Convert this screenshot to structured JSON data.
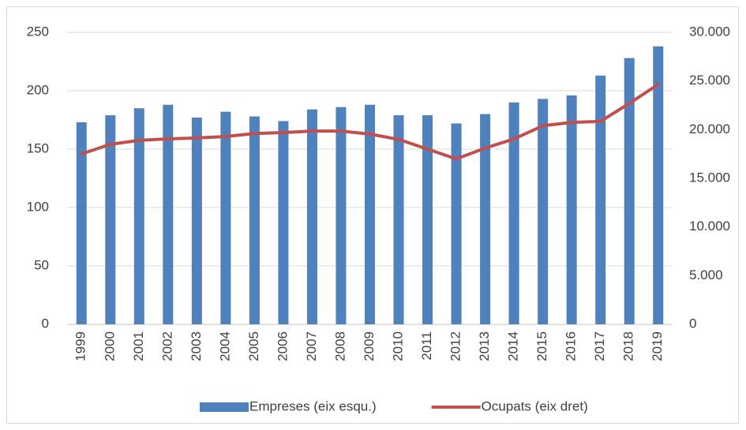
{
  "chart_data": {
    "type": "combo",
    "categories": [
      "1999",
      "2000",
      "2001",
      "2002",
      "2003",
      "2004",
      "2005",
      "2006",
      "2007",
      "2008",
      "2009",
      "2010",
      "2011",
      "2012",
      "2013",
      "2014",
      "2015",
      "2016",
      "2017",
      "2018",
      "2019"
    ],
    "series": [
      {
        "name": "Empreses (eix esqu.)",
        "type": "bar",
        "axis": "y",
        "color": "#4f81bd",
        "values": [
          173,
          179,
          185,
          188,
          177,
          182,
          178,
          174,
          184,
          186,
          188,
          179,
          179,
          172,
          180,
          190,
          193,
          196,
          213,
          228,
          238
        ]
      },
      {
        "name": "Ocupats (eix dret)",
        "type": "line",
        "axis": "y2",
        "color": "#c0504d",
        "values": [
          17500,
          18500,
          18900,
          19050,
          19150,
          19300,
          19600,
          19700,
          19850,
          19850,
          19550,
          19000,
          18000,
          17000,
          18100,
          19050,
          20400,
          20750,
          20850,
          22700,
          24650
        ]
      }
    ],
    "ylim": [
      0,
      250
    ],
    "yticks": [
      0,
      50,
      100,
      150,
      200,
      250
    ],
    "y2lim": [
      0,
      30000
    ],
    "y2ticks": [
      0,
      {
        "value": 5000,
        "label": "5.000"
      },
      {
        "value": 10000,
        "label": "10.000"
      },
      {
        "value": 15000,
        "label": "15.000"
      },
      {
        "value": 20000,
        "label": "20.000"
      },
      {
        "value": 25000,
        "label": "25.000"
      },
      {
        "value": 30000,
        "label": "30.000"
      }
    ],
    "grid": true,
    "legend": "bottom"
  }
}
